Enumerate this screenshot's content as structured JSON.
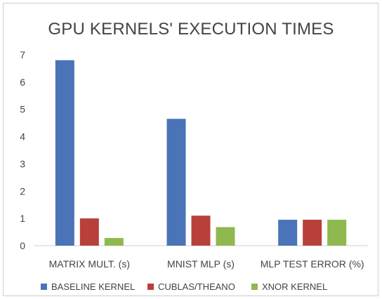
{
  "chart_data": {
    "type": "bar",
    "title": "GPU KERNELS' EXECUTION TIMES",
    "categories": [
      "MATRIX MULT. (s)",
      "MNIST MLP (s)",
      "MLP TEST ERROR (%)"
    ],
    "series": [
      {
        "name": "BASELINE KERNEL",
        "color": "#4a73b8",
        "values": [
          6.8,
          4.65,
          0.95
        ]
      },
      {
        "name": "CUBLAS/THEANO",
        "color": "#b8403a",
        "values": [
          1.0,
          1.1,
          0.95
        ]
      },
      {
        "name": "XNOR KERNEL",
        "color": "#8fb84e",
        "values": [
          0.28,
          0.68,
          0.95
        ]
      }
    ],
    "ylim": [
      0,
      7
    ],
    "yticks": [
      "0",
      "1",
      "2",
      "3",
      "4",
      "5",
      "6",
      "7"
    ],
    "grid": false,
    "legend": "bottom"
  }
}
